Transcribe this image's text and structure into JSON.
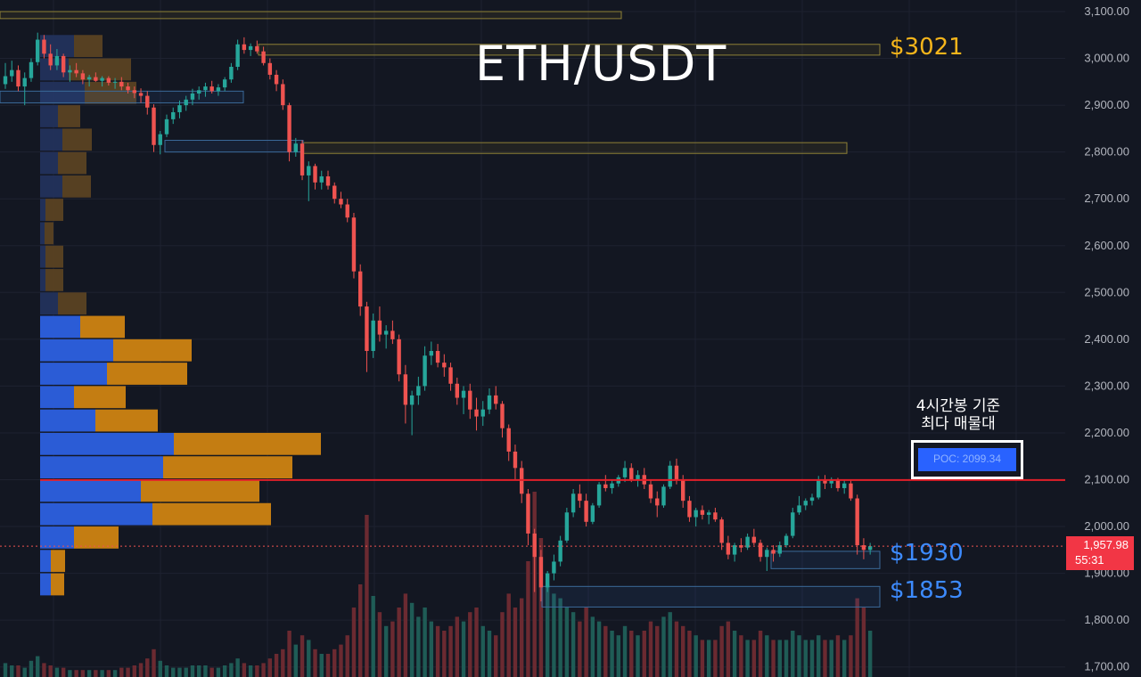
{
  "chart_data": {
    "type": "candlestick",
    "title": "ETH/USDT",
    "y_axis": {
      "range": [
        1690,
        3110
      ],
      "ticks": [
        "3,100.00",
        "3,000.00",
        "2,900.00",
        "2,800.00",
        "2,700.00",
        "2,600.00",
        "2,500.00",
        "2,400.00",
        "2,300.00",
        "2,200.00",
        "2,100.00",
        "2,000.00",
        "1,900.00",
        "1,800.00",
        "1,700.00"
      ]
    },
    "grid": true,
    "level_labels": {
      "resistance": "$3021",
      "support_1": "$1930",
      "support_2": "$1853"
    },
    "annotation_lines": [
      "4시간봉 기준",
      "최다 매물대"
    ],
    "poc": {
      "label": "POC: 2099.34",
      "value": 2099.34
    },
    "last_price": {
      "price": "1,957.98",
      "countdown": "55:31",
      "value": 1957.98
    },
    "zones": [
      {
        "kind": "resistance",
        "top": 3100,
        "bottom": 3085
      },
      {
        "kind": "resistance",
        "top": 3030,
        "bottom": 3007
      },
      {
        "kind": "resistance",
        "top": 2820,
        "bottom": 2797
      },
      {
        "kind": "support",
        "top": 2930,
        "bottom": 2905
      },
      {
        "kind": "support",
        "top": 2825,
        "bottom": 2800
      },
      {
        "kind": "support",
        "top": 1947,
        "bottom": 1910
      },
      {
        "kind": "support",
        "top": 1872,
        "bottom": 1828
      }
    ],
    "volume_profile": [
      {
        "low": 3000,
        "high": 3050,
        "buy": 38,
        "sell": 32
      },
      {
        "low": 2950,
        "high": 3000,
        "buy": 32,
        "sell": 70
      },
      {
        "low": 2900,
        "high": 2950,
        "buy": 50,
        "sell": 58
      },
      {
        "low": 2850,
        "high": 2900,
        "buy": 20,
        "sell": 25
      },
      {
        "low": 2800,
        "high": 2850,
        "buy": 25,
        "sell": 33
      },
      {
        "low": 2750,
        "high": 2800,
        "buy": 20,
        "sell": 32
      },
      {
        "low": 2700,
        "high": 2750,
        "buy": 25,
        "sell": 32
      },
      {
        "low": 2650,
        "high": 2700,
        "buy": 6,
        "sell": 20
      },
      {
        "low": 2600,
        "high": 2650,
        "buy": 5,
        "sell": 10
      },
      {
        "low": 2550,
        "high": 2600,
        "buy": 6,
        "sell": 20
      },
      {
        "low": 2500,
        "high": 2550,
        "buy": 6,
        "sell": 20
      },
      {
        "low": 2450,
        "high": 2500,
        "buy": 20,
        "sell": 32
      },
      {
        "low": 2400,
        "high": 2450,
        "buy": 45,
        "sell": 50
      },
      {
        "low": 2350,
        "high": 2400,
        "buy": 82,
        "sell": 88
      },
      {
        "low": 2300,
        "high": 2350,
        "buy": 75,
        "sell": 90
      },
      {
        "low": 2250,
        "high": 2300,
        "buy": 38,
        "sell": 58
      },
      {
        "low": 2200,
        "high": 2250,
        "buy": 62,
        "sell": 70
      },
      {
        "low": 2150,
        "high": 2200,
        "buy": 150,
        "sell": 165
      },
      {
        "low": 2100,
        "high": 2150,
        "buy": 138,
        "sell": 145
      },
      {
        "low": 2050,
        "high": 2100,
        "buy": 113,
        "sell": 133
      },
      {
        "low": 2000,
        "high": 2050,
        "buy": 126,
        "sell": 133
      },
      {
        "low": 1950,
        "high": 2000,
        "buy": 38,
        "sell": 50
      },
      {
        "low": 1900,
        "high": 1950,
        "buy": 12,
        "sell": 16
      },
      {
        "low": 1850,
        "high": 1900,
        "buy": 12,
        "sell": 15
      }
    ],
    "candles": [
      [
        2945,
        2990,
        2935,
        2962
      ],
      [
        2962,
        2995,
        2950,
        2975
      ],
      [
        2975,
        2985,
        2930,
        2940
      ],
      [
        2940,
        2970,
        2900,
        2958
      ],
      [
        2958,
        3000,
        2950,
        2992
      ],
      [
        2992,
        3055,
        2985,
        3040
      ],
      [
        3040,
        3050,
        3000,
        3010
      ],
      [
        3010,
        3030,
        2975,
        2985
      ],
      [
        2985,
        3020,
        2975,
        3005
      ],
      [
        3005,
        3010,
        2960,
        2970
      ],
      [
        2970,
        2985,
        2950,
        2975
      ],
      [
        2975,
        2990,
        2960,
        2968
      ],
      [
        2968,
        2975,
        2945,
        2955
      ],
      [
        2955,
        2965,
        2940,
        2960
      ],
      [
        2960,
        2970,
        2950,
        2952
      ],
      [
        2952,
        2962,
        2940,
        2958
      ],
      [
        2958,
        2962,
        2942,
        2948
      ],
      [
        2948,
        2958,
        2935,
        2950
      ],
      [
        2950,
        2960,
        2932,
        2940
      ],
      [
        2940,
        2948,
        2925,
        2932
      ],
      [
        2932,
        2940,
        2915,
        2926
      ],
      [
        2926,
        2936,
        2905,
        2920
      ],
      [
        2920,
        2930,
        2880,
        2895
      ],
      [
        2895,
        2902,
        2800,
        2815
      ],
      [
        2815,
        2845,
        2795,
        2838
      ],
      [
        2838,
        2880,
        2832,
        2870
      ],
      [
        2870,
        2895,
        2860,
        2885
      ],
      [
        2885,
        2910,
        2872,
        2900
      ],
      [
        2900,
        2920,
        2888,
        2912
      ],
      [
        2912,
        2935,
        2900,
        2925
      ],
      [
        2925,
        2940,
        2912,
        2932
      ],
      [
        2932,
        2948,
        2918,
        2940
      ],
      [
        2940,
        2952,
        2925,
        2930
      ],
      [
        2930,
        2945,
        2920,
        2938
      ],
      [
        2938,
        2960,
        2930,
        2955
      ],
      [
        2955,
        2990,
        2948,
        2982
      ],
      [
        2982,
        3040,
        2975,
        3030
      ],
      [
        3030,
        3045,
        3010,
        3018
      ],
      [
        3018,
        3032,
        3005,
        3026
      ],
      [
        3026,
        3038,
        3010,
        3015
      ],
      [
        3015,
        3025,
        2985,
        2990
      ],
      [
        2990,
        3000,
        2955,
        2965
      ],
      [
        2965,
        2975,
        2930,
        2945
      ],
      [
        2945,
        2955,
        2890,
        2900
      ],
      [
        2900,
        2905,
        2780,
        2800
      ],
      [
        2800,
        2830,
        2790,
        2818
      ],
      [
        2818,
        2825,
        2740,
        2750
      ],
      [
        2750,
        2780,
        2695,
        2770
      ],
      [
        2770,
        2775,
        2720,
        2735
      ],
      [
        2735,
        2760,
        2720,
        2748
      ],
      [
        2748,
        2760,
        2720,
        2728
      ],
      [
        2728,
        2735,
        2690,
        2700
      ],
      [
        2700,
        2715,
        2680,
        2688
      ],
      [
        2688,
        2700,
        2650,
        2660
      ],
      [
        2660,
        2670,
        2530,
        2545
      ],
      [
        2545,
        2560,
        2450,
        2470
      ],
      [
        2470,
        2480,
        2330,
        2375
      ],
      [
        2375,
        2455,
        2360,
        2440
      ],
      [
        2440,
        2470,
        2395,
        2410
      ],
      [
        2410,
        2430,
        2380,
        2418
      ],
      [
        2418,
        2440,
        2390,
        2400
      ],
      [
        2400,
        2410,
        2310,
        2325
      ],
      [
        2325,
        2345,
        2220,
        2260
      ],
      [
        2260,
        2290,
        2195,
        2280
      ],
      [
        2280,
        2320,
        2260,
        2300
      ],
      [
        2300,
        2385,
        2290,
        2365
      ],
      [
        2365,
        2395,
        2345,
        2375
      ],
      [
        2375,
        2390,
        2340,
        2350
      ],
      [
        2350,
        2368,
        2320,
        2340
      ],
      [
        2340,
        2350,
        2290,
        2305
      ],
      [
        2305,
        2318,
        2260,
        2275
      ],
      [
        2275,
        2300,
        2240,
        2290
      ],
      [
        2290,
        2305,
        2230,
        2250
      ],
      [
        2250,
        2275,
        2205,
        2235
      ],
      [
        2235,
        2268,
        2215,
        2250
      ],
      [
        2250,
        2295,
        2240,
        2280
      ],
      [
        2280,
        2300,
        2250,
        2262
      ],
      [
        2262,
        2268,
        2190,
        2210
      ],
      [
        2210,
        2218,
        2140,
        2160
      ],
      [
        2160,
        2175,
        2100,
        2125
      ],
      [
        2125,
        2140,
        2050,
        2070
      ],
      [
        2070,
        2080,
        1960,
        1985
      ],
      [
        1985,
        1995,
        1860,
        1935
      ],
      [
        1935,
        1950,
        1840,
        1870
      ],
      [
        1870,
        1905,
        1860,
        1900
      ],
      [
        1900,
        1940,
        1885,
        1925
      ],
      [
        1925,
        1980,
        1915,
        1970
      ],
      [
        1970,
        2040,
        1965,
        2030
      ],
      [
        2030,
        2080,
        2020,
        2070
      ],
      [
        2070,
        2090,
        2040,
        2055
      ],
      [
        2055,
        2070,
        2000,
        2010
      ],
      [
        2010,
        2050,
        2005,
        2045
      ],
      [
        2045,
        2095,
        2040,
        2090
      ],
      [
        2090,
        2110,
        2075,
        2082
      ],
      [
        2082,
        2098,
        2070,
        2092
      ],
      [
        2092,
        2110,
        2085,
        2105
      ],
      [
        2105,
        2140,
        2095,
        2125
      ],
      [
        2125,
        2135,
        2095,
        2100
      ],
      [
        2100,
        2120,
        2085,
        2110
      ],
      [
        2110,
        2125,
        2080,
        2090
      ],
      [
        2090,
        2100,
        2050,
        2060
      ],
      [
        2060,
        2075,
        2020,
        2045
      ],
      [
        2045,
        2090,
        2040,
        2085
      ],
      [
        2085,
        2140,
        2080,
        2130
      ],
      [
        2130,
        2145,
        2090,
        2100
      ],
      [
        2100,
        2110,
        2040,
        2055
      ],
      [
        2055,
        2065,
        2010,
        2020
      ],
      [
        2020,
        2040,
        2000,
        2035
      ],
      [
        2035,
        2045,
        2015,
        2025
      ],
      [
        2025,
        2035,
        2005,
        2030
      ],
      [
        2030,
        2040,
        2010,
        2015
      ],
      [
        2015,
        2020,
        1950,
        1965
      ],
      [
        1965,
        1980,
        1930,
        1940
      ],
      [
        1940,
        1965,
        1925,
        1960
      ],
      [
        1960,
        1975,
        1945,
        1955
      ],
      [
        1955,
        1985,
        1950,
        1978
      ],
      [
        1978,
        1995,
        1960,
        1965
      ],
      [
        1965,
        1972,
        1925,
        1935
      ],
      [
        1935,
        1955,
        1905,
        1950
      ],
      [
        1950,
        1960,
        1925,
        1942
      ],
      [
        1942,
        1968,
        1935,
        1960
      ],
      [
        1960,
        1985,
        1955,
        1980
      ],
      [
        1980,
        2040,
        1975,
        2030
      ],
      [
        2030,
        2065,
        2025,
        2045
      ],
      [
        2045,
        2060,
        2035,
        2055
      ],
      [
        2055,
        2070,
        2045,
        2062
      ],
      [
        2062,
        2108,
        2058,
        2100
      ],
      [
        2100,
        2110,
        2080,
        2092
      ],
      [
        2092,
        2105,
        2082,
        2098
      ],
      [
        2098,
        2104,
        2075,
        2082
      ],
      [
        2082,
        2100,
        2070,
        2092
      ],
      [
        2092,
        2098,
        2055,
        2060
      ],
      [
        2060,
        2068,
        1940,
        1960
      ],
      [
        1960,
        1975,
        1930,
        1950
      ],
      [
        1950,
        1965,
        1940,
        1958
      ]
    ],
    "volumes": [
      0.06,
      0.05,
      0.05,
      0.04,
      0.07,
      0.09,
      0.06,
      0.05,
      0.04,
      0.04,
      0.03,
      0.03,
      0.03,
      0.03,
      0.03,
      0.03,
      0.03,
      0.03,
      0.04,
      0.04,
      0.05,
      0.06,
      0.08,
      0.12,
      0.07,
      0.05,
      0.04,
      0.04,
      0.04,
      0.05,
      0.05,
      0.05,
      0.04,
      0.04,
      0.05,
      0.06,
      0.08,
      0.06,
      0.05,
      0.05,
      0.06,
      0.08,
      0.1,
      0.12,
      0.2,
      0.14,
      0.18,
      0.16,
      0.12,
      0.1,
      0.1,
      0.12,
      0.14,
      0.18,
      0.3,
      0.4,
      0.7,
      0.35,
      0.28,
      0.22,
      0.24,
      0.3,
      0.36,
      0.32,
      0.26,
      0.3,
      0.24,
      0.22,
      0.2,
      0.22,
      0.26,
      0.24,
      0.28,
      0.3,
      0.22,
      0.2,
      0.18,
      0.28,
      0.36,
      0.3,
      0.34,
      0.5,
      0.8,
      0.6,
      0.4,
      0.36,
      0.34,
      0.3,
      0.28,
      0.24,
      0.3,
      0.26,
      0.24,
      0.22,
      0.2,
      0.18,
      0.22,
      0.2,
      0.18,
      0.2,
      0.24,
      0.22,
      0.26,
      0.28,
      0.24,
      0.22,
      0.2,
      0.18,
      0.16,
      0.16,
      0.16,
      0.22,
      0.24,
      0.2,
      0.18,
      0.16,
      0.16,
      0.2,
      0.18,
      0.16,
      0.16,
      0.16,
      0.2,
      0.18,
      0.16,
      0.16,
      0.18,
      0.16,
      0.16,
      0.18,
      0.16,
      0.18,
      0.34,
      0.3,
      0.2
    ]
  }
}
